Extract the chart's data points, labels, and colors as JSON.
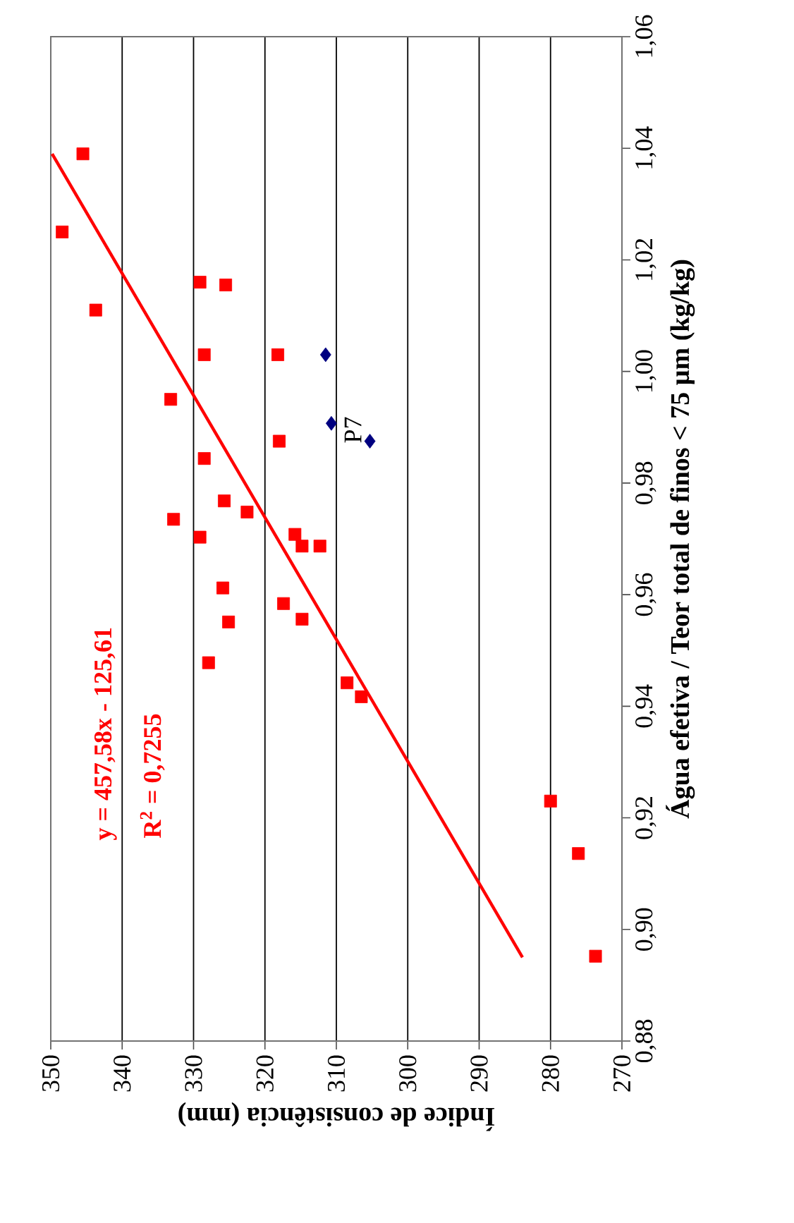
{
  "chart_data": {
    "type": "scatter",
    "xlabel": "Índice de consistência (mm)",
    "ylabel": "Água efetiva / Teor total de finos < 75 µm (kg/kg)",
    "xlim": [
      350,
      270
    ],
    "xticks": [
      350,
      340,
      330,
      320,
      310,
      300,
      290,
      280,
      270
    ],
    "ylim": [
      0.88,
      1.06
    ],
    "yticks": [
      {
        "value": 0.88,
        "label": "0,88"
      },
      {
        "value": 0.9,
        "label": "0,90"
      },
      {
        "value": 0.92,
        "label": "0,92"
      },
      {
        "value": 0.94,
        "label": "0,94"
      },
      {
        "value": 0.96,
        "label": "0,96"
      },
      {
        "value": 0.98,
        "label": "0,98"
      },
      {
        "value": 1.0,
        "label": "1,00"
      },
      {
        "value": 1.02,
        "label": "1,02"
      },
      {
        "value": 1.04,
        "label": "1,04"
      },
      {
        "value": 1.06,
        "label": "1,06"
      }
    ],
    "grid": "x",
    "series": [
      {
        "marker": "square",
        "color": "#ff0000",
        "x": [
          345.5,
          348.4,
          343.7,
          329.1,
          325.5,
          328.5,
          318.2,
          333.2,
          318.0,
          328.5,
          325.7,
          332.8,
          322.5,
          315.8,
          314.8,
          312.3,
          329.1,
          325.9,
          325.1,
          317.4,
          314.8,
          327.9,
          308.5,
          306.5,
          280.0,
          276.1,
          273.7
        ],
        "values": [
          1.039,
          1.025,
          1.011,
          1.016,
          1.0155,
          1.003,
          1.003,
          0.995,
          0.9875,
          0.9844,
          0.9768,
          0.9735,
          0.9748,
          0.9708,
          0.9687,
          0.9687,
          0.9703,
          0.9612,
          0.9551,
          0.9584,
          0.9556,
          0.9478,
          0.9442,
          0.9417,
          0.923,
          0.9136,
          0.8952
        ]
      },
      {
        "marker": "diamond",
        "color": "#000080",
        "x": [
          311.5,
          310.7,
          305.3
        ],
        "values": [
          1.003,
          0.9907,
          0.9875
        ]
      },
      {
        "type": "line",
        "marker": "none",
        "color": "#ff0000",
        "x": [
          283.93,
          349.81
        ],
        "values": [
          0.895,
          1.039
        ]
      }
    ],
    "annotations": [
      "y = 457,58x - 125,61",
      "R$^{2}$ = 0,7255",
      {
        "text": "P7",
        "x": 305.3,
        "y": 0.9875
      }
    ]
  }
}
